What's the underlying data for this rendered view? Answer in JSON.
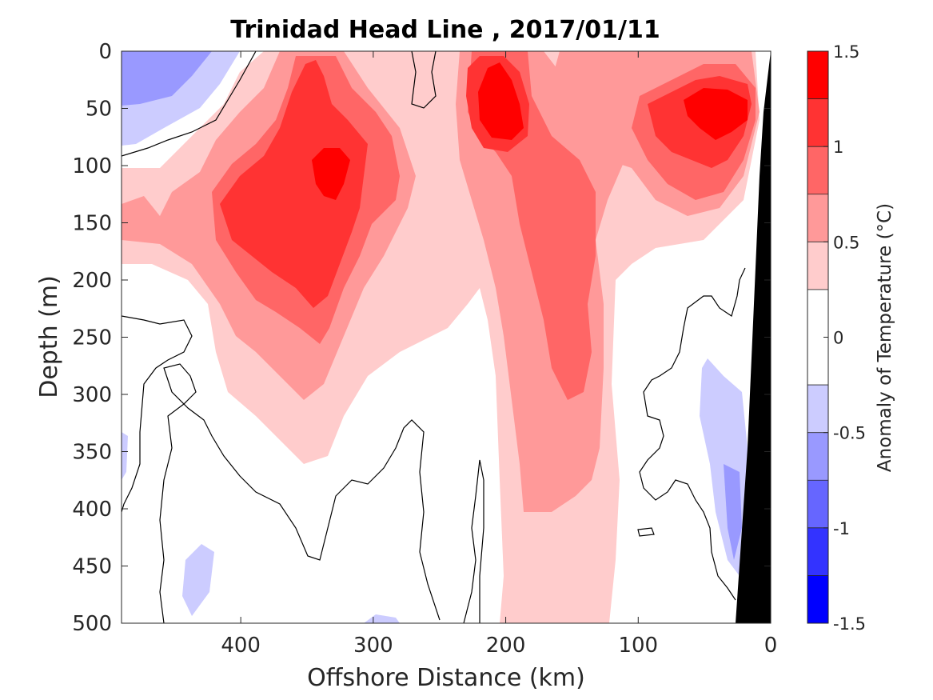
{
  "chart_data": {
    "type": "heatmap",
    "subtype": "filled-contour",
    "title": "Trinidad Head Line , 2017/01/11",
    "xlabel": "Offshore Distance (km)",
    "ylabel": "Depth (m)",
    "xlim": [
      490,
      0
    ],
    "ylim": [
      500,
      0
    ],
    "x_ticks": [
      "400",
      "300",
      "200",
      "100",
      "0"
    ],
    "x_tick_values": [
      400,
      300,
      200,
      100,
      0
    ],
    "y_ticks": [
      "0",
      "50",
      "100",
      "150",
      "200",
      "250",
      "300",
      "350",
      "400",
      "450",
      "500"
    ],
    "y_tick_values": [
      0,
      50,
      100,
      150,
      200,
      250,
      300,
      350,
      400,
      450,
      500
    ],
    "colorbar": {
      "label": "Anomaly of Temperature (°C)",
      "ticks": [
        "1.5",
        "1",
        "0.5",
        "0",
        "-0.5",
        "-1",
        "-1.5"
      ],
      "tick_values": [
        1.5,
        1,
        0.5,
        0,
        -0.5,
        -1,
        -1.5
      ],
      "levels": [
        -1.5,
        -1.25,
        -1.0,
        -0.75,
        -0.5,
        -0.25,
        0.25,
        0.5,
        0.75,
        1.0,
        1.25,
        1.5
      ],
      "colors": [
        "#0000ff",
        "#3333ff",
        "#6666ff",
        "#9999ff",
        "#ccccff",
        "#ffffff",
        "#ffcccc",
        "#ff9999",
        "#ff6666",
        "#ff3333",
        "#ff0000"
      ]
    },
    "land_color": "#000000",
    "zero_contour_color": "#000000",
    "features": [
      {
        "kind": "warm-core",
        "center_km": 335,
        "center_depth_m": 110,
        "max_anomaly": 1.25
      },
      {
        "kind": "warm-core",
        "center_km": 210,
        "center_depth_m": 50,
        "max_anomaly": 1.25
      },
      {
        "kind": "warm-core",
        "center_km": 45,
        "center_depth_m": 60,
        "max_anomaly": 1.25
      },
      {
        "kind": "cool-patch",
        "center_km": 440,
        "center_depth_m": 30,
        "min_anomaly": -0.5
      },
      {
        "kind": "cool-patch",
        "center_km": 25,
        "center_depth_m": 380,
        "min_anomaly": -0.5
      }
    ]
  }
}
